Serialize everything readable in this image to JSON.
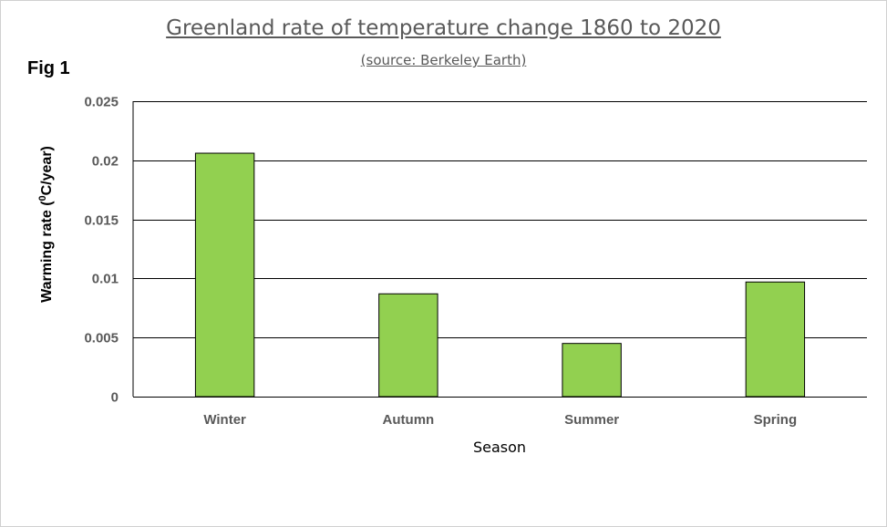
{
  "header": {
    "fig_label": "Fig 1"
  },
  "chart_data": {
    "type": "bar",
    "title": "Greenland rate of temperature change 1860 to 2020",
    "subtitle": "(source: Berkeley Earth)",
    "xlabel": "Season",
    "ylabel_prefix": "Warming rate (",
    "ylabel_sup": "0",
    "ylabel_suffix": "C/year)",
    "categories": [
      "Winter",
      "Autumn",
      "Summer",
      "Spring"
    ],
    "values": [
      0.0206,
      0.0087,
      0.0045,
      0.0097
    ],
    "ylim": [
      0,
      0.025
    ],
    "yticks": [
      0,
      0.005,
      0.01,
      0.015,
      0.02,
      0.025
    ],
    "ytick_labels": [
      "0",
      "0.005",
      "0.01",
      "0.015",
      "0.02",
      "0.025"
    ],
    "grid": true,
    "legend": "none",
    "colors": {
      "bar_fill": "#92D050",
      "bar_stroke": "#000000",
      "grid": "#000000",
      "text": "#595959"
    }
  }
}
